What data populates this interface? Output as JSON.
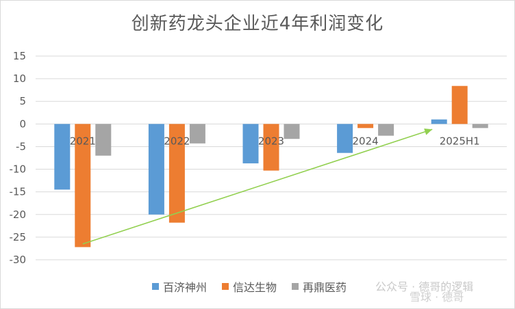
{
  "chart_data": {
    "type": "bar",
    "title": "创新药龙头企业近4年利润变化",
    "categories": [
      "2021",
      "2022",
      "2023",
      "2024",
      "2025H1"
    ],
    "series": [
      {
        "name": "百济神州",
        "color": "#5b9bd5",
        "values": [
          -14.5,
          -20.0,
          -8.7,
          -6.4,
          1.0
        ]
      },
      {
        "name": "信达生物",
        "color": "#ed7d31",
        "values": [
          -27.2,
          -21.8,
          -10.3,
          -0.9,
          8.4
        ]
      },
      {
        "name": "再鼎医药",
        "color": "#a5a5a5",
        "values": [
          -7.0,
          -4.3,
          -3.3,
          -2.6,
          -0.9
        ]
      }
    ],
    "ylim": [
      -30,
      15
    ],
    "yticks": [
      15,
      10,
      5,
      0,
      -5,
      -10,
      -15,
      -20,
      -25,
      -30
    ],
    "grid": true,
    "legend": "bottom",
    "annotation": {
      "type": "arrow",
      "color": "#92d050",
      "from": {
        "x": "2021",
        "y": -26.5
      },
      "to": {
        "x": "2025H1",
        "y": -1.2
      }
    }
  },
  "watermark": {
    "text1": "公众号 · 德哥的逻辑",
    "text2": "雪球 · 德哥"
  }
}
